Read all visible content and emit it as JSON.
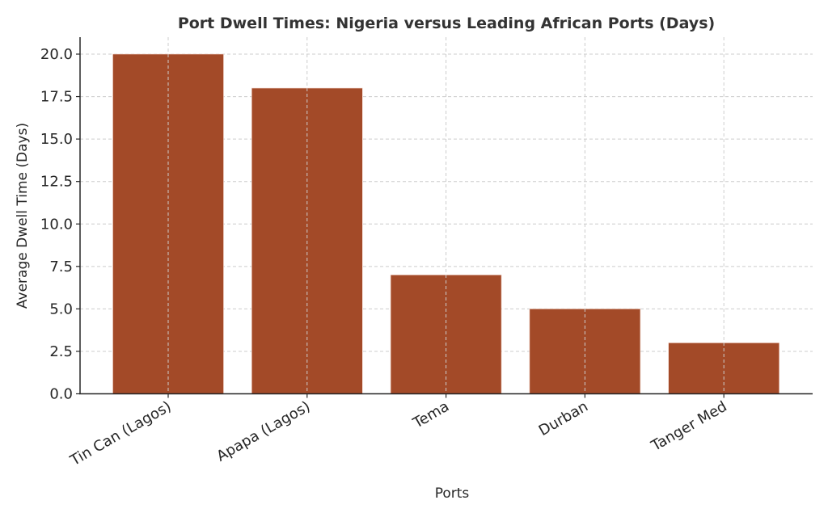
{
  "chart": {
    "title": "Port Dwell Times: Nigeria versus Leading African Ports (Days)",
    "xlabel": "Ports",
    "ylabel": "Average Dwell Time (Days)",
    "bar_color": "#a34a28",
    "grid_color": "#cccccc",
    "axis_color": "#262626"
  },
  "chart_data": {
    "type": "bar",
    "title": "Port Dwell Times: Nigeria versus Leading African Ports (Days)",
    "xlabel": "Ports",
    "ylabel": "Average Dwell Time (Days)",
    "categories": [
      "Tin Can (Lagos)",
      "Apapa (Lagos)",
      "Tema",
      "Durban",
      "Tanger Med"
    ],
    "values": [
      20,
      18,
      7,
      5,
      3
    ],
    "ylim": [
      0,
      21
    ],
    "yticks": [
      "0.0",
      "2.5",
      "5.0",
      "7.5",
      "10.0",
      "12.5",
      "15.0",
      "17.5",
      "20.0"
    ],
    "ytick_values": [
      0,
      2.5,
      5,
      7.5,
      10,
      12.5,
      15,
      17.5,
      20
    ],
    "grid": true,
    "grid_style": "dashed",
    "legend": null,
    "xtick_rotation": 30
  }
}
